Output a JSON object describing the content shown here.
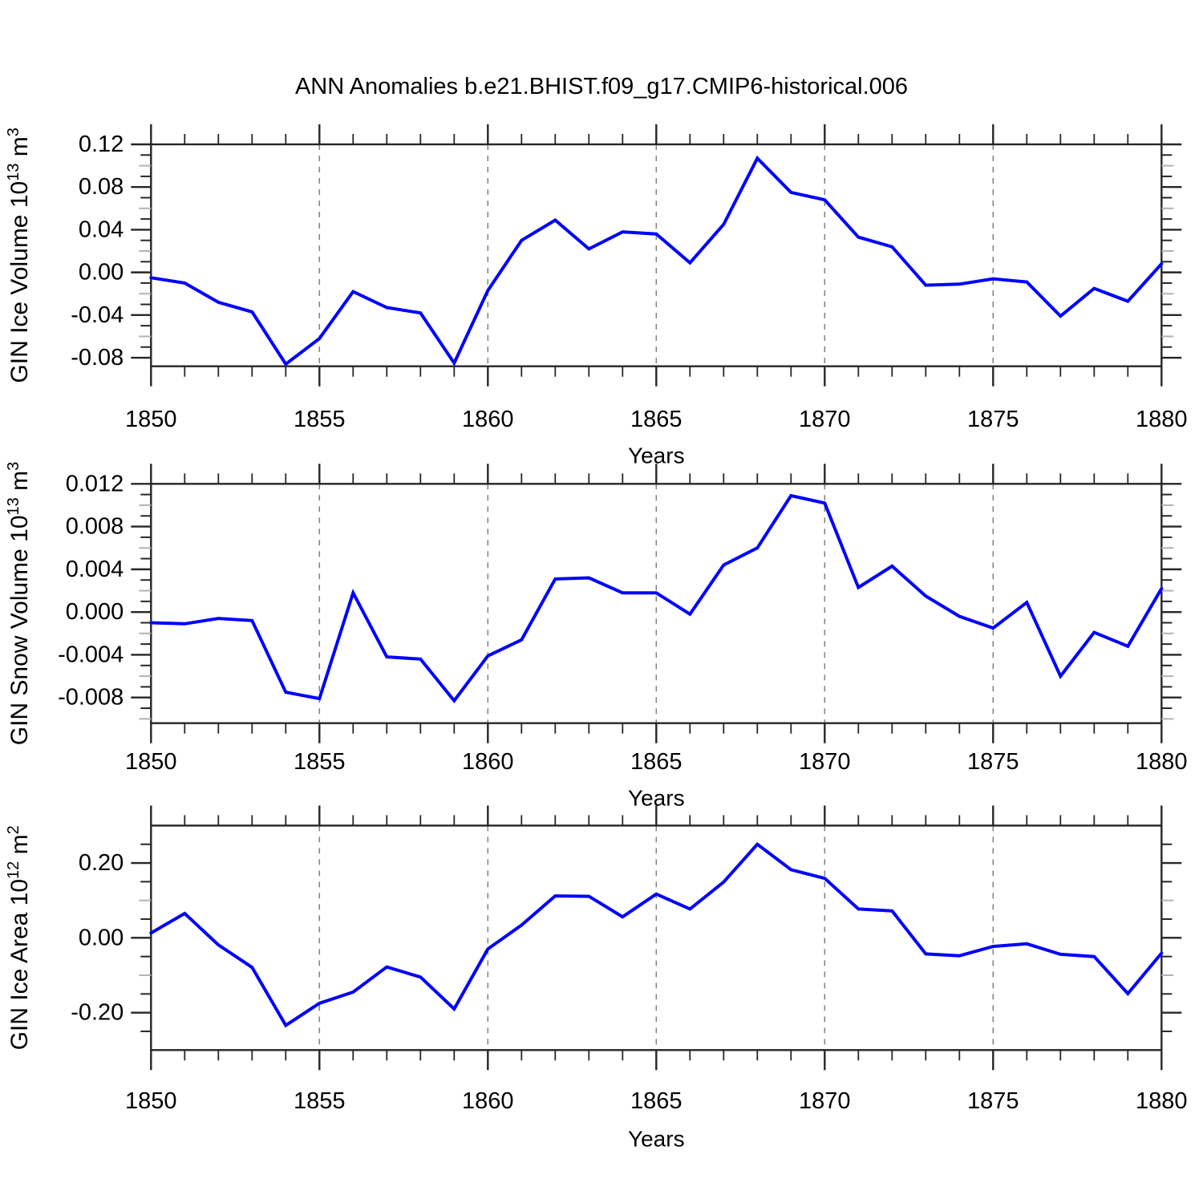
{
  "title": "ANN Anomalies b.e21.BHIST.f09_g17.CMIP6-historical.006",
  "colors": {
    "line": "#0000ff",
    "axis": "#262626",
    "grid": "#808080",
    "mid_minor_tick": "#b3b3b3",
    "text": "#000000",
    "background": "#ffffff"
  },
  "x_axis": {
    "label": "Years",
    "start": 1850,
    "end": 1880,
    "major_step": 5,
    "minor_step": 1,
    "tick_values": [
      1850,
      1855,
      1860,
      1865,
      1870,
      1875,
      1880
    ],
    "tick_labels": [
      "1850",
      "1855",
      "1860",
      "1865",
      "1870",
      "1875",
      "1880"
    ],
    "gridlines": [
      1855,
      1860,
      1865,
      1870,
      1875
    ],
    "years": [
      1850,
      1851,
      1852,
      1853,
      1854,
      1855,
      1856,
      1857,
      1858,
      1859,
      1860,
      1861,
      1862,
      1863,
      1864,
      1865,
      1866,
      1867,
      1868,
      1869,
      1870,
      1871,
      1872,
      1873,
      1874,
      1875,
      1876,
      1877,
      1878,
      1879,
      1880
    ]
  },
  "chart_data": [
    {
      "type": "line",
      "name": "gin-ice-volume",
      "ylabel": "GIN Ice Volume 10^13 m^3",
      "ylabel_parts": [
        {
          "t": "GIN Ice Volume 10"
        },
        {
          "t": "13",
          "sup": true
        },
        {
          "t": " m"
        },
        {
          "t": "3",
          "sup": true
        }
      ],
      "xlabel": "Years",
      "ylim": [
        -0.088,
        0.12
      ],
      "ytick_values": [
        -0.08,
        -0.04,
        0.0,
        0.04,
        0.08,
        0.12
      ],
      "ytick_labels": [
        "-0.08",
        "-0.04",
        "0.00",
        "0.04",
        "0.08",
        "0.12"
      ],
      "y_major_step": 0.04,
      "y_minor_step": 0.01,
      "grid": "vertical-dashed",
      "legend": "none",
      "values": [
        -0.005,
        -0.01,
        -0.028,
        -0.037,
        -0.086,
        -0.062,
        -0.018,
        -0.033,
        -0.038,
        -0.085,
        -0.017,
        0.03,
        0.049,
        0.022,
        0.038,
        0.036,
        0.009,
        0.045,
        0.107,
        0.075,
        0.068,
        0.033,
        0.024,
        -0.012,
        -0.011,
        -0.006,
        -0.009,
        -0.041,
        -0.015,
        -0.027,
        0.008
      ]
    },
    {
      "type": "line",
      "name": "gin-snow-volume",
      "ylabel": "GIN Snow Volume 10^13 m^3",
      "ylabel_parts": [
        {
          "t": "GIN Snow Volume 10"
        },
        {
          "t": "13",
          "sup": true
        },
        {
          "t": " m"
        },
        {
          "t": "3",
          "sup": true
        }
      ],
      "xlabel": "Years",
      "ylim": [
        -0.0104,
        0.012
      ],
      "ytick_values": [
        -0.008,
        -0.004,
        0.0,
        0.004,
        0.008,
        0.012
      ],
      "ytick_labels": [
        "-0.008",
        "-0.004",
        "0.000",
        "0.004",
        "0.008",
        "0.012"
      ],
      "y_major_step": 0.004,
      "y_minor_step": 0.001,
      "grid": "vertical-dashed",
      "legend": "none",
      "values": [
        -0.001,
        -0.0011,
        -0.0006,
        -0.0008,
        -0.0075,
        -0.0081,
        0.0018,
        -0.0042,
        -0.0044,
        -0.0083,
        -0.0041,
        -0.0026,
        0.0031,
        0.0032,
        0.0018,
        0.0018,
        -0.0002,
        0.0044,
        0.006,
        0.0109,
        0.0102,
        0.0023,
        0.0043,
        0.0015,
        -0.0004,
        -0.0015,
        0.0009,
        -0.006,
        -0.0019,
        -0.0032,
        0.0022
      ]
    },
    {
      "type": "line",
      "name": "gin-ice-area",
      "ylabel": "GIN Ice Area 10^12 m^2",
      "ylabel_parts": [
        {
          "t": "GIN Ice Area 10"
        },
        {
          "t": "12",
          "sup": true
        },
        {
          "t": " m"
        },
        {
          "t": "2",
          "sup": true
        }
      ],
      "xlabel": "Years",
      "ylim": [
        -0.3,
        0.3
      ],
      "ytick_values": [
        -0.2,
        0.0,
        0.2
      ],
      "ytick_labels": [
        "-0.20",
        "0.00",
        "0.20"
      ],
      "y_major_step": 0.2,
      "y_minor_step": 0.05,
      "grid": "vertical-dashed",
      "legend": "none",
      "values": [
        0.013,
        0.065,
        -0.019,
        -0.079,
        -0.234,
        -0.175,
        -0.145,
        -0.078,
        -0.105,
        -0.19,
        -0.03,
        0.034,
        0.112,
        0.111,
        0.056,
        0.117,
        0.077,
        0.149,
        0.25,
        0.182,
        0.159,
        0.077,
        0.072,
        -0.043,
        -0.048,
        -0.023,
        -0.016,
        -0.044,
        -0.05,
        -0.149,
        -0.041
      ]
    }
  ]
}
